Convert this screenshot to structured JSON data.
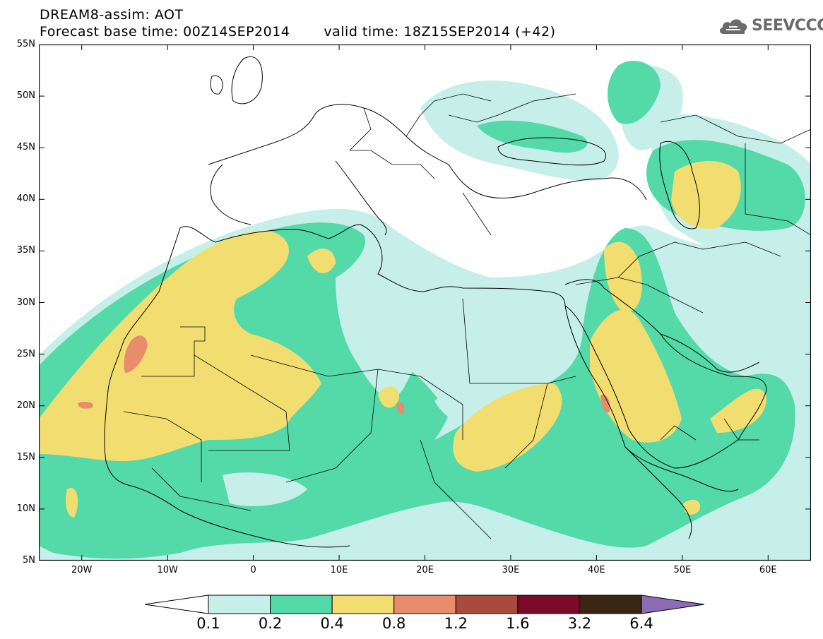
{
  "header": {
    "line1": "DREAM8-assim: AOT",
    "line2_base": "Forecast base time: 00Z14SEP2014",
    "line2_valid": "valid time: 18Z15SEP2014 (+42)"
  },
  "logo": {
    "text": "SEEVCCC",
    "icon": "cloud-icon",
    "color": "#6b6b6b"
  },
  "map": {
    "projection": "lat-lon",
    "lon_range": [
      -25,
      65
    ],
    "lat_range": [
      5,
      55
    ],
    "lat_labels": [
      "55N",
      "50N",
      "45N",
      "40N",
      "35N",
      "30N",
      "25N",
      "20N",
      "15N",
      "10N",
      "5N"
    ],
    "lat_values": [
      55,
      50,
      45,
      40,
      35,
      30,
      25,
      20,
      15,
      10,
      5
    ],
    "lon_labels": [
      "20W",
      "10W",
      "0",
      "10E",
      "20E",
      "30E",
      "40E",
      "50E",
      "60E"
    ],
    "lon_values": [
      -20,
      -10,
      0,
      10,
      20,
      30,
      40,
      50,
      60
    ]
  },
  "colorbar": {
    "labels": [
      "0.1",
      "0.2",
      "0.4",
      "0.8",
      "1.2",
      "1.6",
      "3.2",
      "6.4"
    ],
    "colors": [
      "#c6efe9",
      "#54d9a9",
      "#f2de70",
      "#e88c6b",
      "#a84a3c",
      "#7a0c2a",
      "#3a2612",
      "#8e6bb5"
    ],
    "under_color": "#ffffff"
  }
}
